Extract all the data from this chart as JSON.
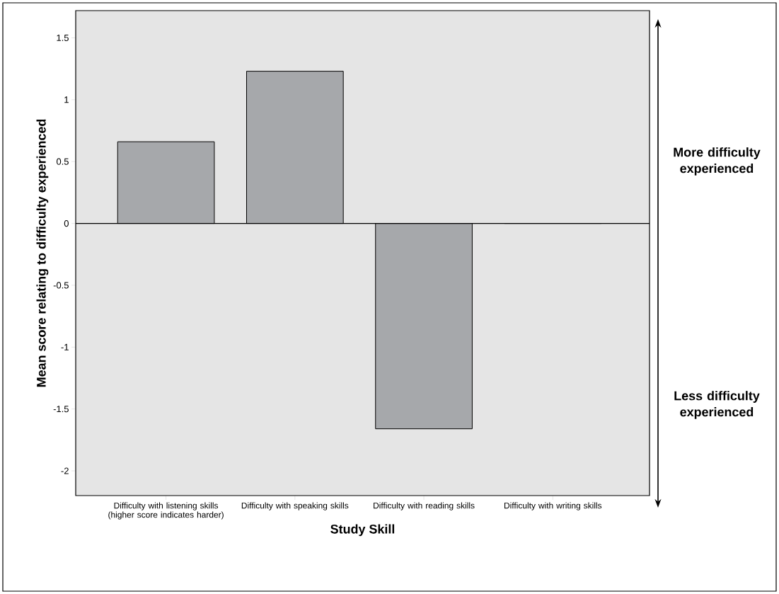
{
  "chart_data": {
    "type": "bar",
    "xlabel": "Study Skill",
    "ylabel": "Mean score relating to difficulty experienced",
    "categories": [
      "Difficulty with listening skills (higher score indicates harder)",
      "Difficulty with speaking skills",
      "Difficulty with reading skills",
      "Difficulty with writing skills"
    ],
    "values": [
      0.66,
      1.23,
      -1.66,
      0
    ],
    "color": "#a6a8ab",
    "ylim": [
      -2.2,
      1.72
    ],
    "yticks": [
      -2,
      -1.5,
      -1,
      -0.5,
      0,
      0.5,
      1,
      1.5
    ],
    "annotations": [
      "More difficulty experienced",
      "Less difficulty experienced"
    ]
  }
}
